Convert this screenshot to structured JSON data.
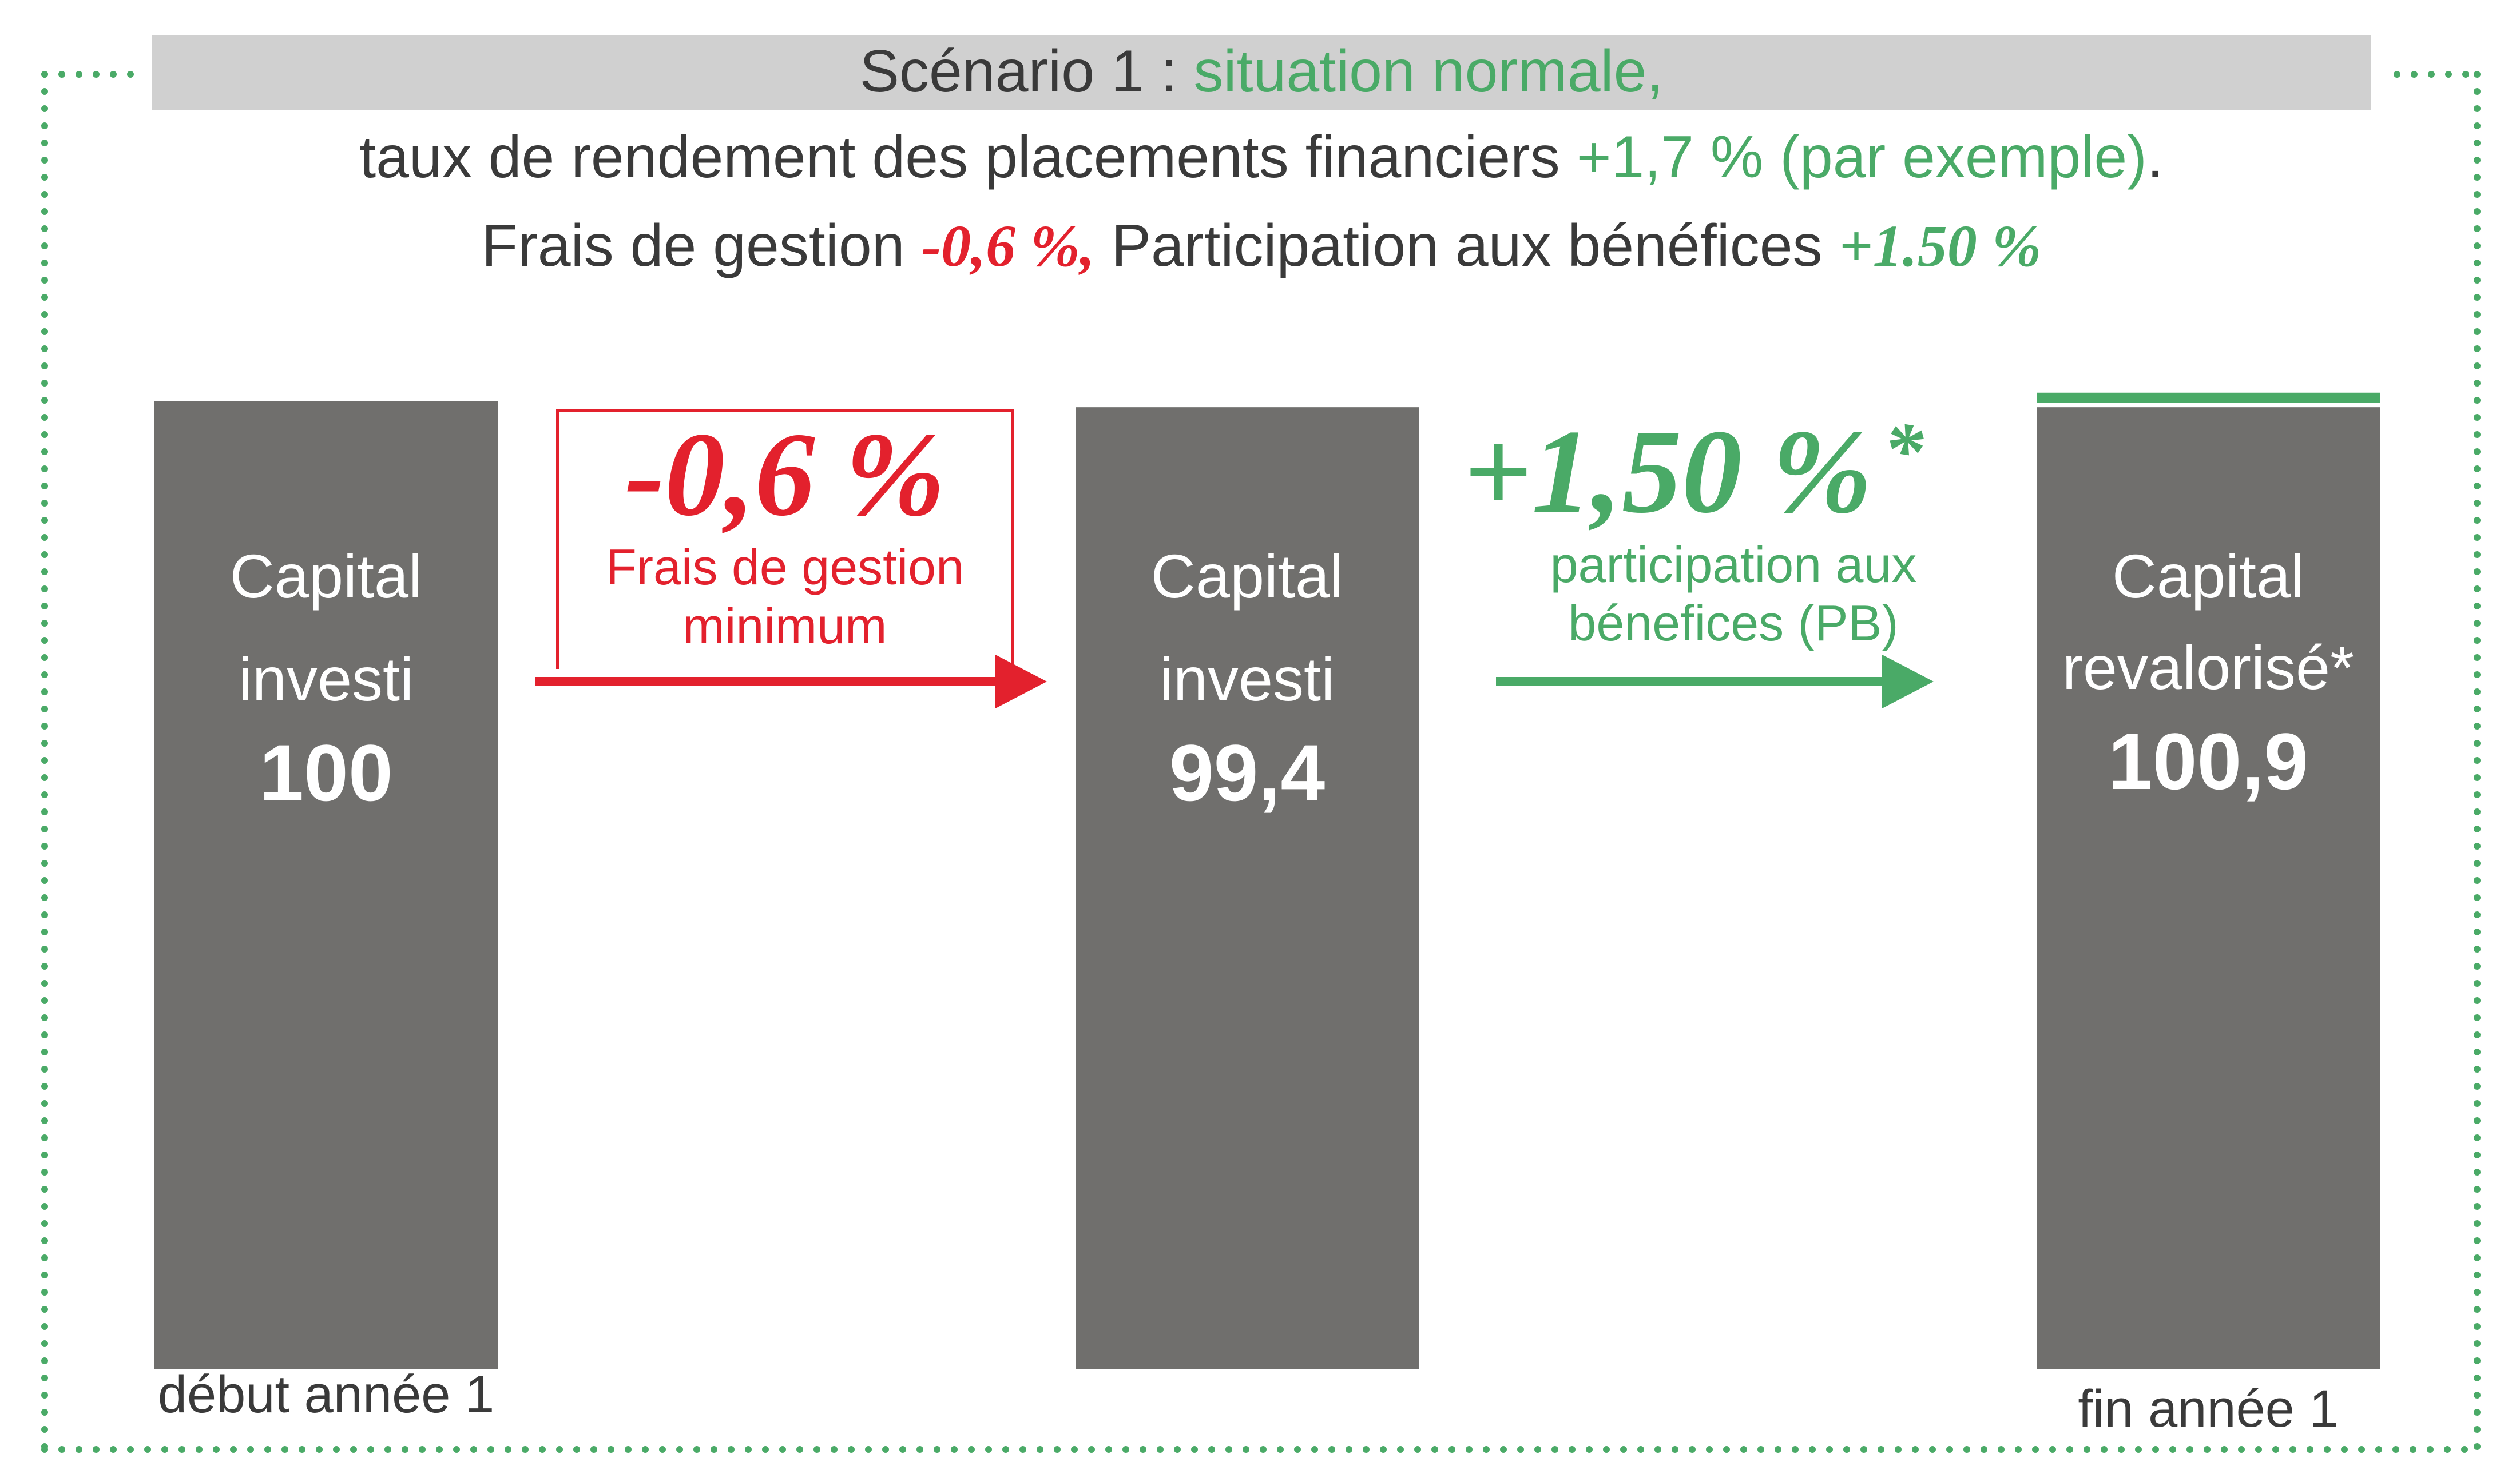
{
  "colors": {
    "bar": "#706f6d",
    "header_bg": "#d0d0d0",
    "text_dark": "#3a3a3a",
    "green": "#4aaa67",
    "red": "#e3212d",
    "white": "#ffffff",
    "border_dots": "#4aaa67"
  },
  "header": {
    "line1_prefix": "Scénario 1 : ",
    "line1_highlight": "situation normale,",
    "line2_prefix": "taux de rendement des placements financiers ",
    "line2_highlight": "+1,7 % (par exemple)",
    "line2_suffix": ".",
    "line3_prefix": "Frais de gestion ",
    "line3_red": "-0,6 %,",
    "line3_middle": " Participation aux bénéfices ",
    "line3_green": "+1.50 %"
  },
  "fees_box": {
    "big": "-0,6 %",
    "label_line1": "Frais de gestion",
    "label_line2": "minimum"
  },
  "pb_box": {
    "big": "+1,50 %",
    "asterisk": "*",
    "label_line1": "participation aux",
    "label_line2": "bénefices (PB)"
  },
  "chart_data": {
    "type": "bar",
    "categories": [
      "début année 1",
      "",
      "fin année 1"
    ],
    "series": [
      {
        "values": [
          100,
          99.4,
          100.9
        ],
        "bar_labels": [
          [
            "Capital",
            "investi"
          ],
          [
            "Capital",
            "investi"
          ],
          [
            "Capital",
            "revalorisé*"
          ]
        ],
        "value_labels": [
          "100",
          "99,4",
          "100,9"
        ]
      }
    ],
    "highlight_segment": {
      "bar_index": 2,
      "from": 99.4,
      "to": 100.9
    },
    "x_labels": [
      "début année 1",
      "",
      "fin année 1"
    ]
  }
}
